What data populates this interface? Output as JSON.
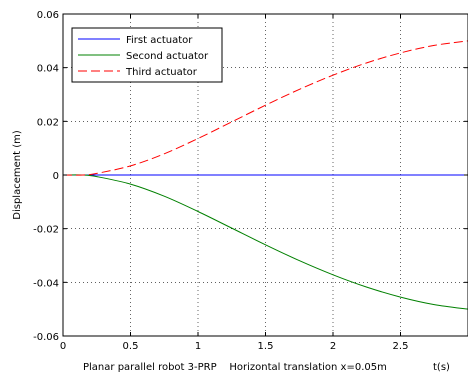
{
  "chart_data": {
    "type": "line",
    "title": "",
    "xlabel": "Planar parallel robot 3-PRP    Horizontal translation x=0.05m",
    "xlabel_unit": "t(s)",
    "ylabel": "Displacement (m)",
    "xlim": [
      0,
      3
    ],
    "ylim": [
      -0.06,
      0.06
    ],
    "xticks": [
      0,
      0.5,
      1,
      1.5,
      2,
      2.5
    ],
    "xtick_labels": [
      "0",
      "0.5",
      "1",
      "1.5",
      "2",
      "2.5"
    ],
    "yticks": [
      -0.06,
      -0.04,
      -0.02,
      0,
      0.02,
      0.04,
      0.06
    ],
    "ytick_labels": [
      "-0.06",
      "-0.04",
      "-0.02",
      "0",
      "0.02",
      "0.04",
      "0.06"
    ],
    "grid": true,
    "legend_position": "top-left",
    "series": [
      {
        "name": "First actuator",
        "color": "#0000ff",
        "style": "solid",
        "x": [
          0,
          0.5,
          1,
          1.5,
          2,
          2.5,
          3
        ],
        "y": [
          0,
          0,
          0,
          0,
          0,
          0,
          0
        ]
      },
      {
        "name": "Second actuator",
        "color": "#008000",
        "style": "solid",
        "x": [
          0,
          0.15,
          0.25,
          0.5,
          0.75,
          1,
          1.25,
          1.5,
          1.75,
          2,
          2.25,
          2.5,
          2.75,
          3
        ],
        "y": [
          0,
          0,
          -0.0006,
          -0.0034,
          -0.0079,
          -0.0136,
          -0.0198,
          -0.026,
          -0.0319,
          -0.0372,
          -0.0418,
          -0.0455,
          -0.0483,
          -0.05
        ]
      },
      {
        "name": "Third actuator",
        "color": "#ff0000",
        "style": "dashed",
        "x": [
          0,
          0.15,
          0.25,
          0.5,
          0.75,
          1,
          1.25,
          1.5,
          1.75,
          2,
          2.25,
          2.5,
          2.75,
          3
        ],
        "y": [
          0,
          0,
          0.0006,
          0.0034,
          0.0079,
          0.0136,
          0.0198,
          0.026,
          0.0319,
          0.0372,
          0.0418,
          0.0455,
          0.0483,
          0.05
        ]
      }
    ]
  }
}
